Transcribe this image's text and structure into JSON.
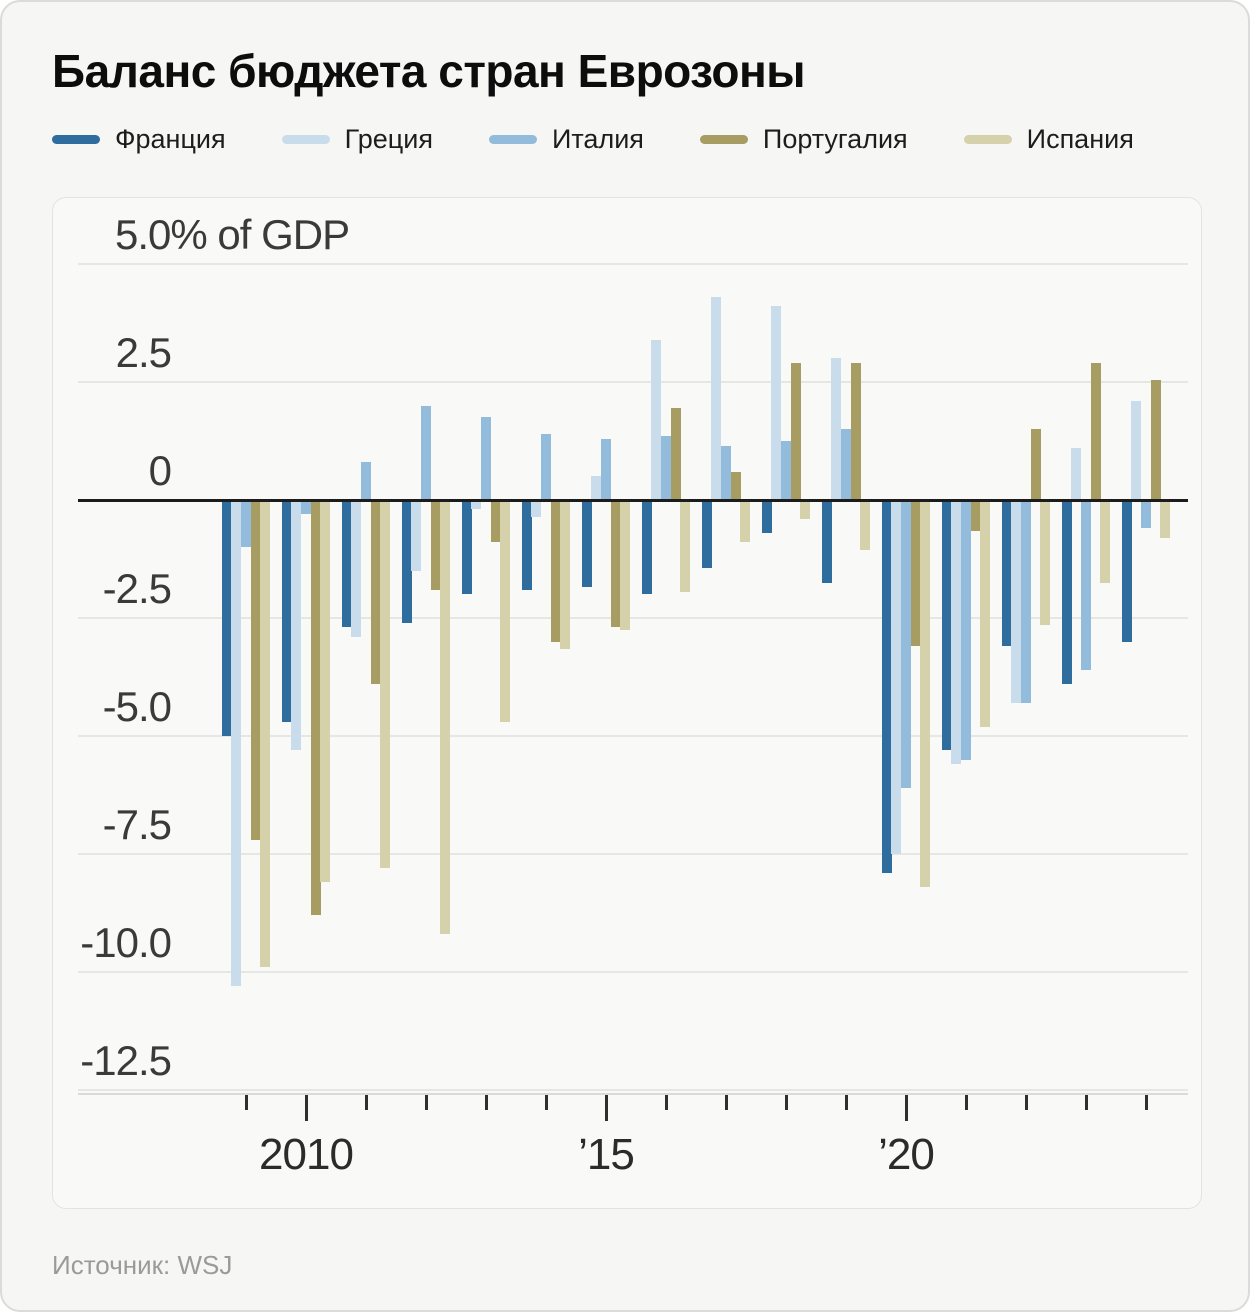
{
  "title": "Баланс бюджета стран Еврозоны",
  "source": {
    "label": "Источник:",
    "value": "WSJ"
  },
  "colors": {
    "background": "#f6f6f4",
    "panel": "#f9f9f7",
    "grid": "#e6e6e2",
    "zero_line": "#1c1c1c",
    "axis_text": "#3a3a3a"
  },
  "chart_data": {
    "type": "bar",
    "title": "Баланс бюджета стран Еврозоны",
    "unit_top_label": "5.0% of GDP",
    "ylabel": "% of GDP",
    "ylim": [
      -12.5,
      5.0
    ],
    "grid": "on",
    "legend_position": "top",
    "categories": [
      "2009",
      "2010",
      "2011",
      "2012",
      "2013",
      "2014",
      "2015",
      "2016",
      "2017",
      "2018",
      "2019",
      "2020",
      "2021",
      "2022",
      "2023",
      "2024"
    ],
    "series": [
      {
        "name": "Франция",
        "color": "#2e6d9e",
        "values": [
          -5.0,
          -4.7,
          -2.7,
          -2.6,
          -2.0,
          -1.9,
          -1.85,
          -2.0,
          -1.45,
          -0.7,
          -1.75,
          -7.9,
          -5.3,
          -3.1,
          -3.9,
          -3.0
        ]
      },
      {
        "name": "Греция",
        "color": "#c9dcec",
        "values": [
          -10.3,
          -5.3,
          -2.9,
          -1.5,
          -0.2,
          -0.35,
          0.5,
          3.4,
          4.3,
          4.1,
          3.0,
          -7.5,
          -5.6,
          -4.3,
          1.1,
          2.1
        ]
      },
      {
        "name": "Италия",
        "color": "#92bbdc",
        "values": [
          -1.0,
          -0.3,
          0.8,
          2.0,
          1.75,
          1.4,
          1.3,
          1.35,
          1.15,
          1.25,
          1.5,
          -6.1,
          -5.5,
          -4.3,
          -3.6,
          -0.6
        ]
      },
      {
        "name": "Португалия",
        "color": "#a79d62",
        "values": [
          -7.2,
          -8.8,
          -3.9,
          -1.9,
          -0.9,
          -3.0,
          -2.7,
          1.95,
          0.6,
          2.9,
          2.9,
          -3.1,
          -0.65,
          1.5,
          2.9,
          2.55
        ]
      },
      {
        "name": "Испания",
        "color": "#d5d2ab",
        "values": [
          -9.9,
          -8.1,
          -7.8,
          -9.2,
          -4.7,
          -3.15,
          -2.75,
          -1.95,
          -0.9,
          -0.4,
          -1.05,
          -8.2,
          -4.8,
          -2.65,
          -1.75,
          -0.8
        ]
      }
    ],
    "y_axis": {
      "gridline_values": [
        5,
        2.5,
        0,
        -2.5,
        -5,
        -7.5,
        -10,
        -12.5
      ],
      "labels": [
        {
          "value": 5,
          "text": "5.0% of GDP"
        },
        {
          "value": 2.5,
          "text": "2.5"
        },
        {
          "value": 0,
          "text": "0"
        },
        {
          "value": -2.5,
          "text": "-2.5"
        },
        {
          "value": -5,
          "text": "-5.0"
        },
        {
          "value": -7.5,
          "text": "-7.5"
        },
        {
          "value": -10,
          "text": "-10.0"
        },
        {
          "value": -12.5,
          "text": "-12.5"
        }
      ]
    },
    "x_axis": {
      "tick_labels": [
        {
          "index": 1,
          "text": "2010"
        },
        {
          "index": 6,
          "text": "’15"
        },
        {
          "index": 11,
          "text": "’20"
        }
      ]
    }
  }
}
